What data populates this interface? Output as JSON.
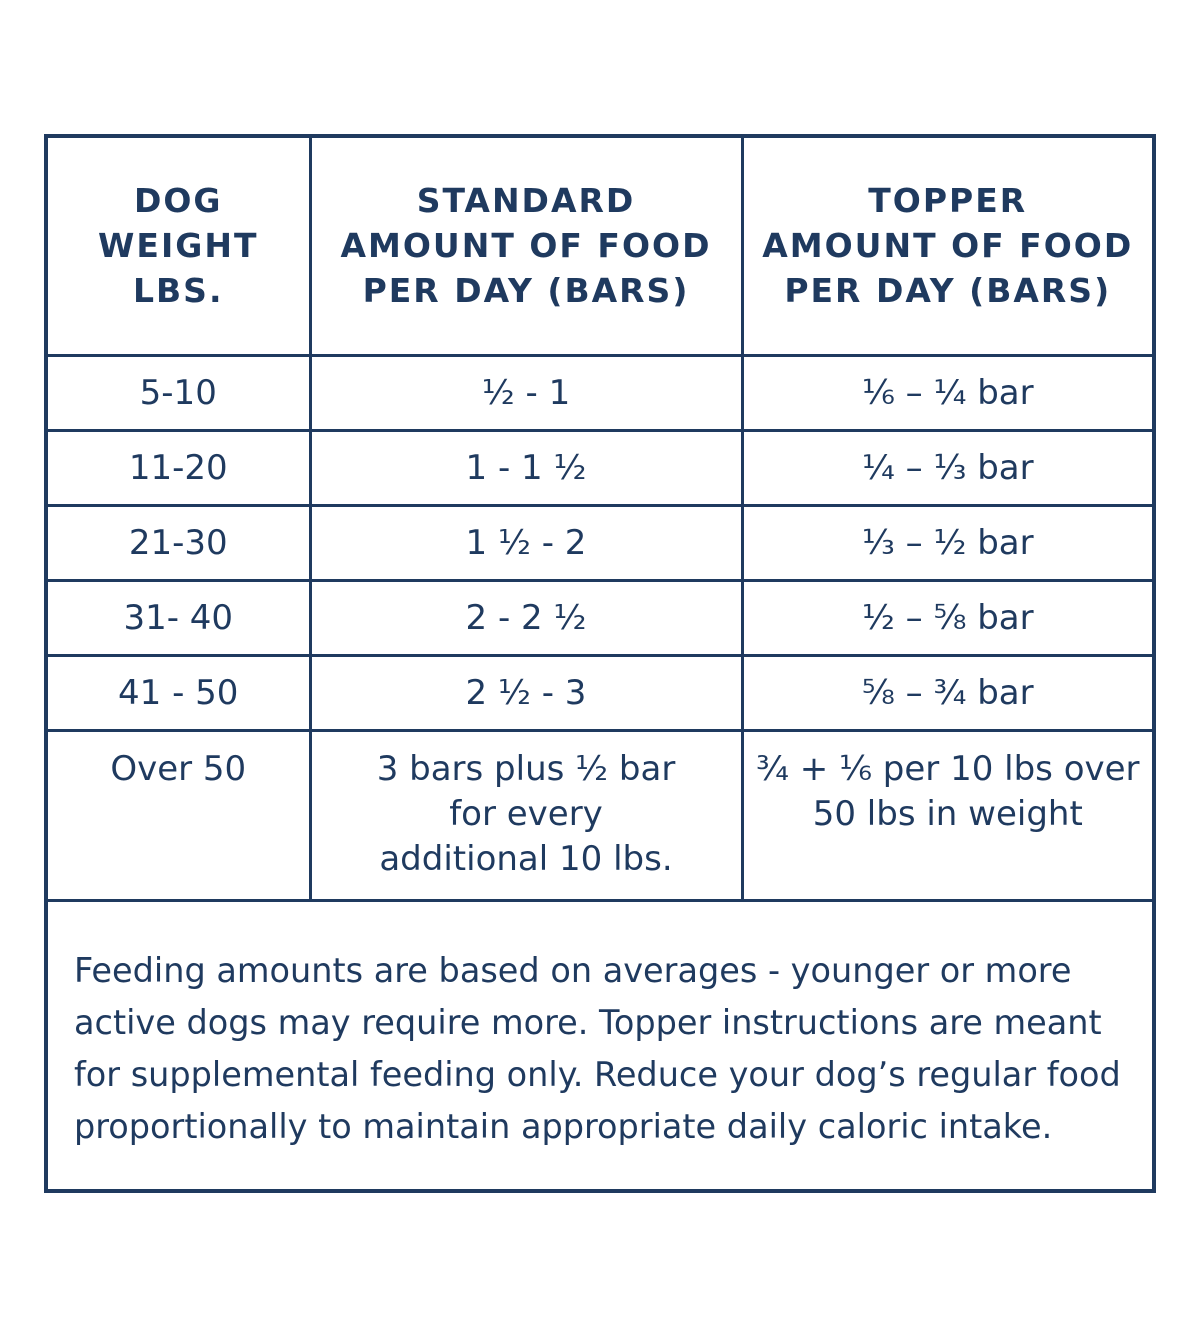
{
  "table": {
    "headers": [
      {
        "lines": [
          "DOG",
          "WEIGHT",
          "LBS."
        ]
      },
      {
        "lines": [
          "STANDARD",
          "AMOUNT OF FOOD",
          "PER DAY (BARS)"
        ]
      },
      {
        "lines": [
          "TOPPER",
          "AMOUNT OF FOOD",
          "PER DAY (BARS)"
        ]
      }
    ],
    "rows": [
      {
        "weight": "5-10",
        "standard": "½ - 1",
        "topper": "⅙ – ¼ bar"
      },
      {
        "weight": "11-20",
        "standard": "1 - 1 ½",
        "topper": "¼ – ⅓ bar"
      },
      {
        "weight": "21-30",
        "standard": "1 ½ - 2",
        "topper": "⅓ – ½ bar"
      },
      {
        "weight": "31- 40",
        "standard": "2 - 2 ½",
        "topper": "½ – ⅝ bar"
      },
      {
        "weight": "41 - 50",
        "standard": "2 ½ - 3",
        "topper": "⅝ – ¾ bar"
      }
    ],
    "last_row": {
      "weight": "Over 50",
      "standard_lines": [
        "3 bars plus ½ bar",
        "for every",
        "additional 10 lbs."
      ],
      "topper_lines": [
        "¾ + ⅙ per 10 lbs over",
        "50 lbs in weight"
      ]
    }
  },
  "note": {
    "lines": [
      "Feeding amounts are based on averages - younger or more",
      "active dogs may require more. Topper instructions are meant",
      "for supplemental feeding only. Reduce your dog’s regular food",
      "proportionally to maintain appropriate daily caloric intake."
    ]
  },
  "colors": {
    "border": "#1f3a5f",
    "text": "#1f3a5f",
    "background": "#ffffff"
  }
}
